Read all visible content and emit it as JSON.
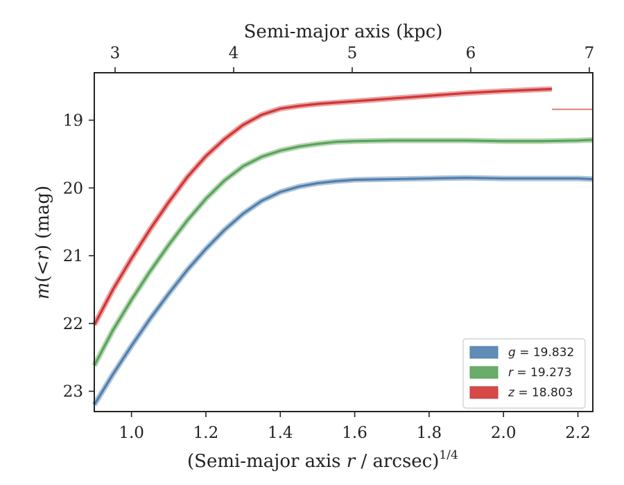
{
  "chart_data": {
    "type": "line",
    "title": "",
    "xlabel": "(Semi-major axis r / arcsec)^(1/4)",
    "xlabel_parts": {
      "prefix": "(Semi-major axis ",
      "var": "r",
      "suffix": " / arcsec)",
      "exponent": "1/4"
    },
    "ylabel": "m(<r) (mag)",
    "ylabel_parts": {
      "func": "m",
      "open": "(",
      "op": "<",
      "var": "r",
      "close": ")",
      "unit": " (mag)"
    },
    "top_xlabel": "Semi-major axis (kpc)",
    "xlim": [
      0.9,
      2.24
    ],
    "ylim": [
      23.3,
      18.3
    ],
    "y_inverted": true,
    "grid": false,
    "legend_position": "lower-right",
    "x_ticks": [
      "1.0",
      "1.2",
      "1.4",
      "1.6",
      "1.8",
      "2.0",
      "2.2"
    ],
    "y_ticks": [
      "19",
      "20",
      "21",
      "22",
      "23"
    ],
    "top_ticks": [
      "3",
      "4",
      "5",
      "6",
      "7"
    ],
    "series": [
      {
        "name": "g = 19.832",
        "legend_var": "g",
        "legend_value": "= 19.832",
        "color": "#4f7fad",
        "x": [
          0.9,
          0.95,
          1.0,
          1.05,
          1.1,
          1.15,
          1.2,
          1.25,
          1.3,
          1.35,
          1.4,
          1.45,
          1.5,
          1.55,
          1.6,
          1.7,
          1.8,
          1.9,
          2.0,
          2.1,
          2.2,
          2.24
        ],
        "y": [
          23.2,
          22.75,
          22.33,
          21.93,
          21.56,
          21.21,
          20.9,
          20.62,
          20.38,
          20.19,
          20.06,
          19.98,
          19.93,
          19.9,
          19.88,
          19.87,
          19.86,
          19.85,
          19.86,
          19.86,
          19.86,
          19.87
        ]
      },
      {
        "name": "r = 19.273",
        "legend_var": "r",
        "legend_value": "= 19.273",
        "color": "#5aa35a",
        "x": [
          0.9,
          0.95,
          1.0,
          1.05,
          1.1,
          1.15,
          1.2,
          1.25,
          1.3,
          1.35,
          1.4,
          1.45,
          1.5,
          1.55,
          1.6,
          1.7,
          1.8,
          1.9,
          2.0,
          2.1,
          2.2,
          2.24
        ],
        "y": [
          22.62,
          22.1,
          21.65,
          21.23,
          20.84,
          20.48,
          20.16,
          19.89,
          19.68,
          19.54,
          19.45,
          19.39,
          19.35,
          19.32,
          19.31,
          19.3,
          19.3,
          19.3,
          19.31,
          19.31,
          19.3,
          19.29
        ]
      },
      {
        "name": "z = 18.803",
        "legend_var": "z",
        "legend_value": "= 18.803",
        "color": "#d03535",
        "x": [
          0.9,
          0.95,
          1.0,
          1.05,
          1.1,
          1.15,
          1.2,
          1.25,
          1.3,
          1.35,
          1.4,
          1.45,
          1.5,
          1.55,
          1.6,
          1.65,
          1.7,
          1.8,
          1.9,
          2.0,
          2.13
        ],
        "y": [
          22.02,
          21.5,
          21.04,
          20.61,
          20.21,
          19.84,
          19.53,
          19.28,
          19.07,
          18.92,
          18.83,
          18.79,
          18.76,
          18.74,
          18.72,
          18.7,
          18.68,
          18.64,
          18.6,
          18.57,
          18.54
        ],
        "extension": {
          "x": [
            2.13,
            2.24
          ],
          "y": [
            18.84,
            18.84
          ]
        }
      }
    ]
  }
}
